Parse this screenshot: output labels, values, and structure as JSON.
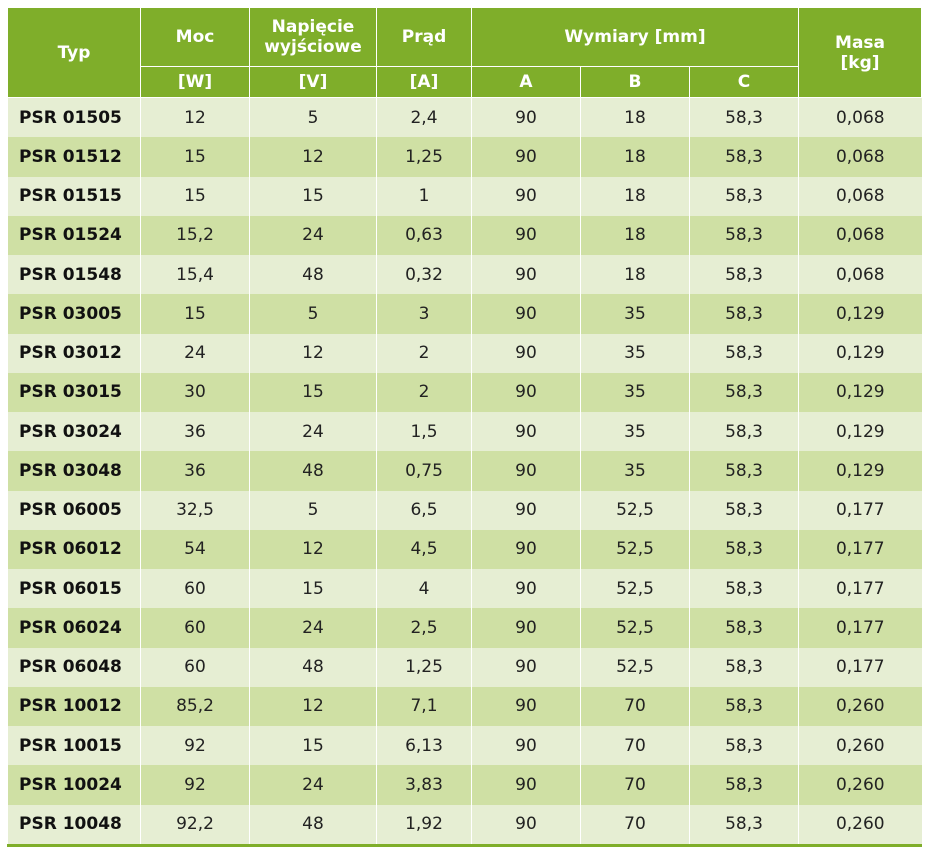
{
  "header": {
    "typ": "Typ",
    "moc": "Moc",
    "napiecie_line1": "Napięcie",
    "napiecie_line2": "wyjściowe",
    "prad": "Prąd",
    "wymiary": "Wymiary [mm]",
    "masa_line1": "Masa",
    "masa_line2": "[kg]",
    "unit_moc": "[W]",
    "unit_nap": "[V]",
    "unit_prad": "[A]",
    "dim_a": "A",
    "dim_b": "B",
    "dim_c": "C"
  },
  "colors": {
    "header_green": "#7fae2a",
    "row_light": "#e6eed3",
    "row_dark": "#cfe0a4"
  },
  "rows": [
    [
      "PSR 01505",
      "12",
      "5",
      "2,4",
      "90",
      "18",
      "58,3",
      "0,068"
    ],
    [
      "PSR 01512",
      "15",
      "12",
      "1,25",
      "90",
      "18",
      "58,3",
      "0,068"
    ],
    [
      "PSR 01515",
      "15",
      "15",
      "1",
      "90",
      "18",
      "58,3",
      "0,068"
    ],
    [
      "PSR 01524",
      "15,2",
      "24",
      "0,63",
      "90",
      "18",
      "58,3",
      "0,068"
    ],
    [
      "PSR 01548",
      "15,4",
      "48",
      "0,32",
      "90",
      "18",
      "58,3",
      "0,068"
    ],
    [
      "PSR 03005",
      "15",
      "5",
      "3",
      "90",
      "35",
      "58,3",
      "0,129"
    ],
    [
      "PSR 03012",
      "24",
      "12",
      "2",
      "90",
      "35",
      "58,3",
      "0,129"
    ],
    [
      "PSR 03015",
      "30",
      "15",
      "2",
      "90",
      "35",
      "58,3",
      "0,129"
    ],
    [
      "PSR 03024",
      "36",
      "24",
      "1,5",
      "90",
      "35",
      "58,3",
      "0,129"
    ],
    [
      "PSR 03048",
      "36",
      "48",
      "0,75",
      "90",
      "35",
      "58,3",
      "0,129"
    ],
    [
      "PSR 06005",
      "32,5",
      "5",
      "6,5",
      "90",
      "52,5",
      "58,3",
      "0,177"
    ],
    [
      "PSR 06012",
      "54",
      "12",
      "4,5",
      "90",
      "52,5",
      "58,3",
      "0,177"
    ],
    [
      "PSR 06015",
      "60",
      "15",
      "4",
      "90",
      "52,5",
      "58,3",
      "0,177"
    ],
    [
      "PSR 06024",
      "60",
      "24",
      "2,5",
      "90",
      "52,5",
      "58,3",
      "0,177"
    ],
    [
      "PSR 06048",
      "60",
      "48",
      "1,25",
      "90",
      "52,5",
      "58,3",
      "0,177"
    ],
    [
      "PSR 10012",
      "85,2",
      "12",
      "7,1",
      "90",
      "70",
      "58,3",
      "0,260"
    ],
    [
      "PSR 10015",
      "92",
      "15",
      "6,13",
      "90",
      "70",
      "58,3",
      "0,260"
    ],
    [
      "PSR 10024",
      "92",
      "24",
      "3,83",
      "90",
      "70",
      "58,3",
      "0,260"
    ],
    [
      "PSR 10048",
      "92,2",
      "48",
      "1,92",
      "90",
      "70",
      "58,3",
      "0,260"
    ]
  ]
}
